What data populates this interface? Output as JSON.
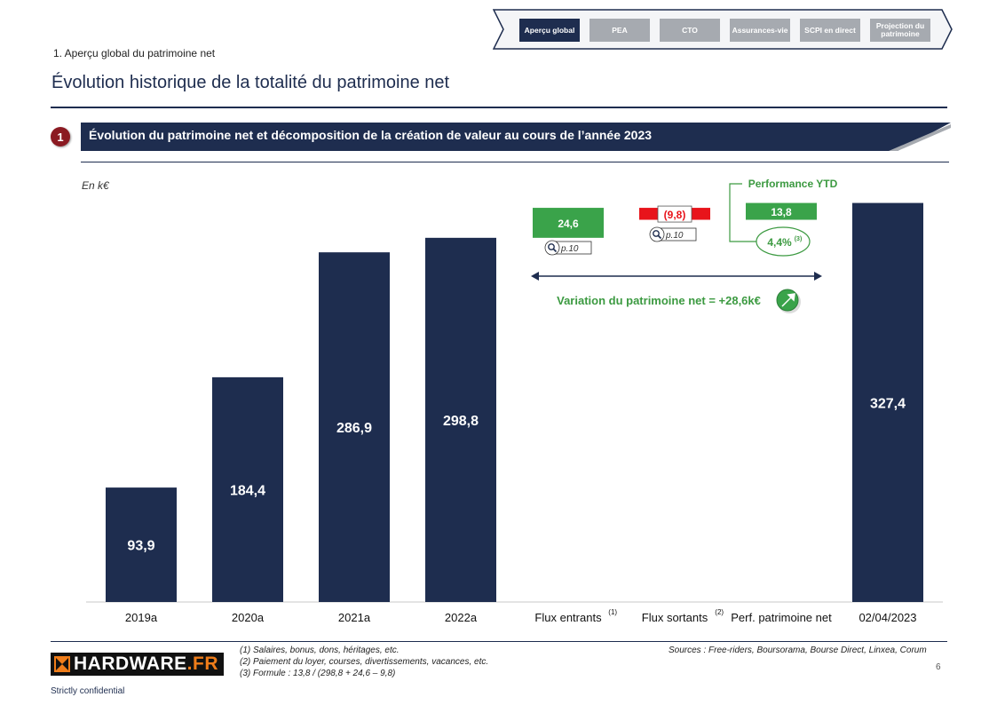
{
  "nav": {
    "items": [
      {
        "label": "Aperçu global",
        "active": true
      },
      {
        "label": "PEA",
        "active": false
      },
      {
        "label": "CTO",
        "active": false
      },
      {
        "label": "Assurances-vie",
        "active": false
      },
      {
        "label": "SCPI en direct",
        "active": false
      },
      {
        "label": "Projection du patrimoine",
        "active": false
      }
    ]
  },
  "header": {
    "breadcrumb": "1. Aperçu global du patrimoine net",
    "title": "Évolution historique de la totalité du patrimoine net"
  },
  "section": {
    "number": "1",
    "title": "Évolution du patrimoine net et décomposition de la création de valeur au cours de l’année 2023"
  },
  "chart_data": {
    "type": "bar",
    "unit_label": "En k€",
    "categories": [
      "2019a",
      "2020a",
      "2021a",
      "2022a",
      "Flux entrants",
      "Flux sortants",
      "Perf. patrimoine net",
      "02/04/2023"
    ],
    "category_superscripts": [
      "",
      "",
      "",
      "",
      "(1)",
      "(2)",
      "",
      ""
    ],
    "values": [
      93.9,
      184.4,
      286.9,
      298.8,
      24.6,
      -9.8,
      13.8,
      327.4
    ],
    "value_labels": [
      "93,9",
      "184,4",
      "286,9",
      "298,8",
      "24,6",
      "(9,8)",
      "13,8",
      "327,4"
    ],
    "bar_kinds": [
      "total",
      "total",
      "total",
      "total",
      "positive",
      "negative",
      "positive",
      "total"
    ],
    "ylim": [
      0,
      340
    ],
    "colors": {
      "total": "#1e2d4f",
      "positive": "#3aa34a",
      "negative": "#e8141b",
      "green_text": "#3c9a41"
    },
    "annotations": {
      "ref_flux_entrants": "p.10",
      "ref_flux_sortants": "p.10",
      "perf_title": "Performance YTD",
      "perf_pct": "4,4%",
      "perf_pct_sup": "(3)",
      "variation": "Variation du patrimoine net = +28,6k€"
    }
  },
  "footer": {
    "sources": "Sources : Free-riders, Boursorama, Bourse Direct, Linxea, Corum",
    "notes": [
      "(1)    Salaires, bonus, dons, héritages, etc.",
      "(2)    Paiement du loyer, courses, divertissements, vacances, etc.",
      "(3)    Formule : 13,8 / (298,8 + 24,6 – 9,8)"
    ],
    "page": "6",
    "confidential": "Strictly confidential",
    "logo_text_main": "HARDWARE",
    "logo_text_suffix": ".FR"
  }
}
